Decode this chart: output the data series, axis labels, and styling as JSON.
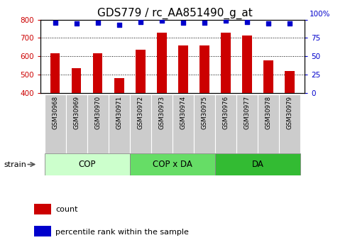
{
  "title": "GDS779 / rc_AA851490_g_at",
  "categories": [
    "GSM30968",
    "GSM30969",
    "GSM30970",
    "GSM30971",
    "GSM30972",
    "GSM30973",
    "GSM30974",
    "GSM30975",
    "GSM30976",
    "GSM30977",
    "GSM30978",
    "GSM30979"
  ],
  "bar_values": [
    618,
    535,
    615,
    480,
    635,
    730,
    660,
    660,
    728,
    715,
    578,
    520
  ],
  "dot_values": [
    96,
    95,
    96,
    93,
    97,
    99,
    96,
    96,
    99,
    97,
    95,
    95
  ],
  "bar_color": "#cc0000",
  "dot_color": "#0000cc",
  "ylim_left": [
    400,
    800
  ],
  "ylim_right": [
    0,
    100
  ],
  "yticks_left": [
    400,
    500,
    600,
    700,
    800
  ],
  "yticks_right": [
    0,
    25,
    50,
    75,
    100
  ],
  "groups": [
    {
      "label": "COP",
      "start": 0,
      "end": 3,
      "color": "#ccffcc"
    },
    {
      "label": "COP x DA",
      "start": 4,
      "end": 7,
      "color": "#66dd66"
    },
    {
      "label": "DA",
      "start": 8,
      "end": 11,
      "color": "#33bb33"
    }
  ],
  "strain_label": "strain",
  "legend_bar_label": "count",
  "legend_dot_label": "percentile rank within the sample",
  "bg_color": "#ffffff",
  "label_bg_color": "#cccccc",
  "title_fontsize": 11,
  "axis_fontsize": 9,
  "tick_fontsize": 7.5
}
